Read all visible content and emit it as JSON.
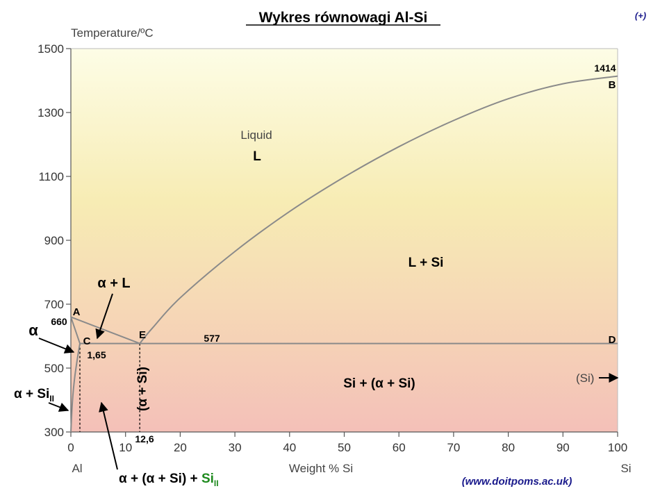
{
  "chart_data": {
    "type": "line",
    "title": "Wykres równowagi Al-Si",
    "corner_mark": "(+)",
    "xlabel": "Weight % Si",
    "ylabel": "Temperature/ºC",
    "x_end_left": "Al",
    "x_end_right": "Si",
    "source": "(www.doitpoms.ac.uk)",
    "xlim": [
      0,
      100
    ],
    "ylim": [
      300,
      1500
    ],
    "grid": false,
    "x_ticks": [
      "0",
      "10",
      "20",
      "30",
      "40",
      "50",
      "60",
      "70",
      "80",
      "90",
      "100"
    ],
    "y_ticks": [
      "300",
      "500",
      "700",
      "900",
      "1100",
      "1300",
      "1500"
    ],
    "background": {
      "top": "#fdfde6",
      "mid": "#f7ecb4",
      "bottom": "#f4c0b8"
    },
    "line_color": "#8a8a8a",
    "series": [
      {
        "id": "liquidus_alpha",
        "x": [
          0,
          12.6
        ],
        "y": [
          660,
          577
        ]
      },
      {
        "id": "liquidus_si",
        "x": [
          12.6,
          15,
          20,
          30,
          40,
          50,
          60,
          70,
          80,
          90,
          100
        ],
        "y": [
          577,
          627,
          720,
          865,
          990,
          1098,
          1193,
          1275,
          1343,
          1390,
          1414
        ]
      },
      {
        "id": "eutectic",
        "x": [
          1.65,
          100
        ],
        "y": [
          577,
          577
        ]
      },
      {
        "id": "solidus",
        "x": [
          0,
          1.65
        ],
        "y": [
          660,
          577
        ]
      },
      {
        "id": "solvus",
        "x": [
          0,
          0.3,
          0.7,
          1.2,
          1.65
        ],
        "y": [
          300,
          400,
          470,
          530,
          577
        ]
      }
    ],
    "guides": [
      {
        "id": "guide_c",
        "x": [
          1.65,
          1.65
        ],
        "y": [
          577,
          300
        ]
      },
      {
        "id": "guide_e",
        "x": [
          12.6,
          12.6
        ],
        "y": [
          577,
          300
        ]
      }
    ],
    "labels": {
      "liquid": "Liquid",
      "L": "L",
      "l_si": "L + Si",
      "alpha_l": "α + L",
      "alpha": "α",
      "alpha_si_main": "α + Si",
      "alpha_si_sub": "II",
      "si_alpha_si": "Si + (α + Si)",
      "eutectic_vertical": "(α + Si)",
      "bottom_main": "α + (α + Si) + ",
      "bottom_si": "Si",
      "bottom_sub": "II",
      "si_arrow": "(Si)",
      "temp_660": "660",
      "temp_577": "577",
      "temp_1414": "1414",
      "comp_165": "1,65",
      "comp_126": "12,6",
      "point_A": "A",
      "point_B": "B",
      "point_C": "C",
      "point_D": "D",
      "point_E": "E"
    }
  }
}
